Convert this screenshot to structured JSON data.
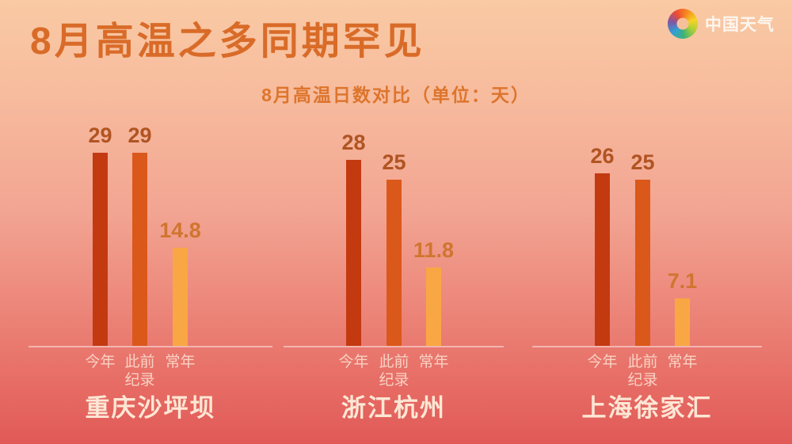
{
  "header": {
    "title": "8月高温之多同期罕见",
    "logo": {
      "icon": "pinwheel-icon",
      "text": "中国天气"
    }
  },
  "subtitle": "8月高温日数对比（单位：天）",
  "chart_data": {
    "type": "bar",
    "title": "8月高温日数对比",
    "unit_label": "单位：天",
    "series_labels": [
      "今年",
      "此前纪录",
      "常年"
    ],
    "categories": [
      "重庆沙坪坝",
      "浙江杭州",
      "上海徐家汇"
    ],
    "series": [
      {
        "name": "今年",
        "values": [
          29,
          28,
          26
        ]
      },
      {
        "name": "此前纪录",
        "values": [
          29,
          25,
          25
        ]
      },
      {
        "name": "常年",
        "values": [
          14.8,
          11.8,
          7.1
        ]
      }
    ],
    "groups": [
      {
        "city": "重庆沙坪坝",
        "values": [
          29,
          29,
          14.8
        ]
      },
      {
        "city": "浙江杭州",
        "values": [
          28,
          25,
          11.8
        ]
      },
      {
        "city": "上海徐家汇",
        "values": [
          26,
          25,
          7.1
        ]
      }
    ],
    "ylim": [
      0,
      30
    ],
    "grid": false,
    "legend_position": "below-bars",
    "bar_colors": [
      "#c33a10",
      "#db581b",
      "#f9a744"
    ],
    "value_label_colors": [
      "#b05423",
      "#b05423",
      "#d0752f"
    ],
    "baseline_color": "rgba(255,255,255,0.45)",
    "category_label_color": "#f8d2c3",
    "city_label_color": "#fde7d5"
  },
  "colors": {
    "background_top": "#f9caa4",
    "background_bottom": "#e15a58",
    "title": "#d96b28",
    "subtitle": "#dd752d",
    "logo_text": "#fdf6ef"
  }
}
